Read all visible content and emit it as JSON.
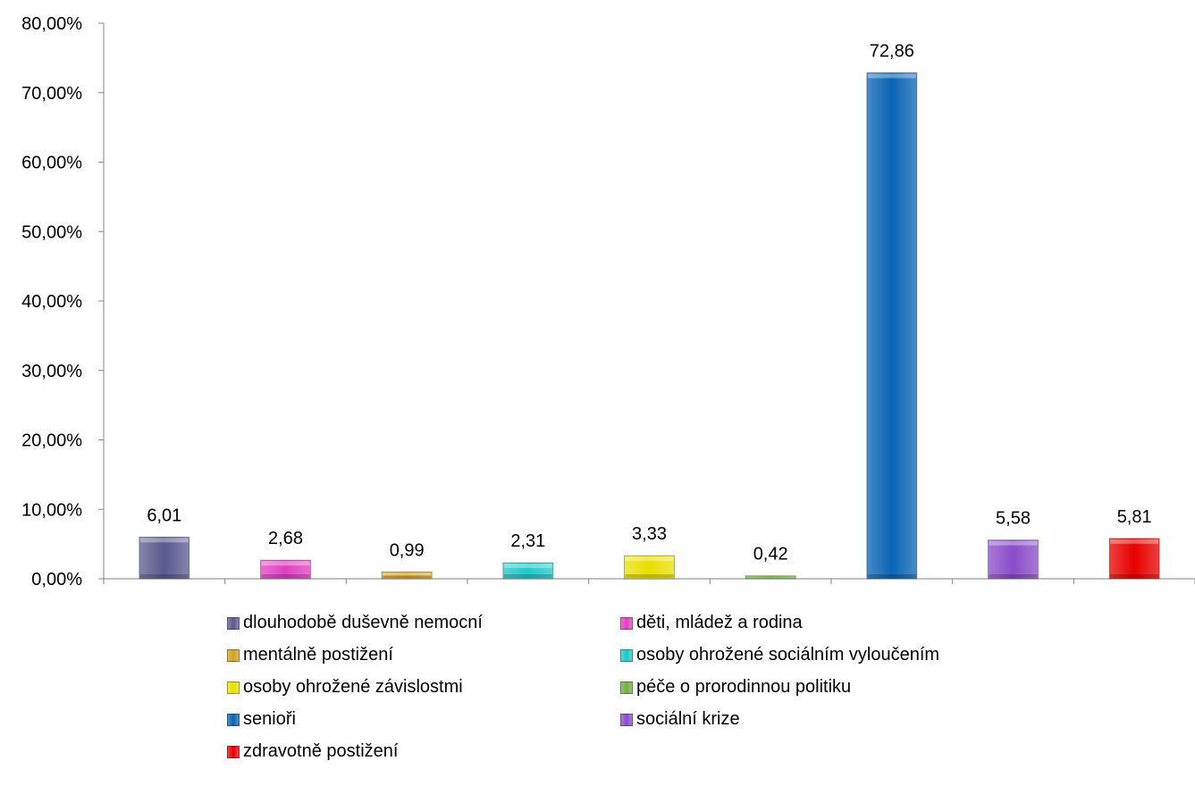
{
  "chart_data": {
    "type": "bar",
    "ylim": [
      0,
      80
    ],
    "yticks": [
      "0,00%",
      "10,00%",
      "20,00%",
      "30,00%",
      "40,00%",
      "50,00%",
      "60,00%",
      "70,00%",
      "80,00%"
    ],
    "legend_position": "bottom",
    "grid": false,
    "categories": [
      "dlouhodobě duševně nemocní",
      "děti, mládež a rodina",
      "mentálně postižení",
      "osoby ohrožené sociálním vyloučením",
      "osoby ohrožené závislostmi",
      "péče o prorodinnou politiku",
      "senioři",
      "sociální krize",
      "zdravotně postižení"
    ],
    "values": [
      6.01,
      2.68,
      0.99,
      2.31,
      3.33,
      0.42,
      72.86,
      5.58,
      5.81
    ],
    "value_labels": [
      "6,01",
      "2,68",
      "0,99",
      "2,31",
      "3,33",
      "0,42",
      "72,86",
      "5,58",
      "5,81"
    ],
    "colors": [
      "#5B5B8F",
      "#E040C0",
      "#D4A020",
      "#20C8C8",
      "#E8E000",
      "#70B040",
      "#0A64B4",
      "#8A4CC8",
      "#E80000"
    ]
  }
}
